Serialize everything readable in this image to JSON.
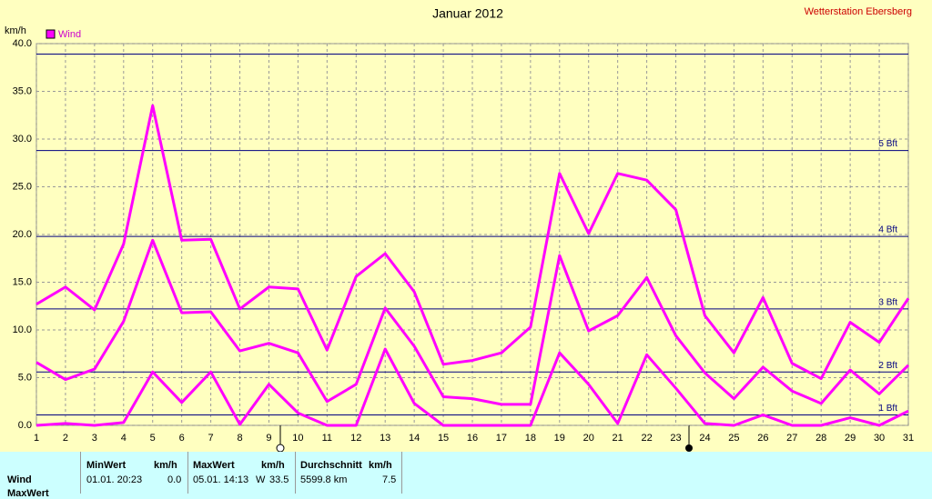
{
  "chart_data": {
    "type": "line",
    "title": "Januar 2012",
    "station": "Wetterstation Ebersberg",
    "y_unit": "km/h",
    "categories": [
      "1",
      "2",
      "3",
      "4",
      "5",
      "6",
      "7",
      "8",
      "9",
      "10",
      "11",
      "12",
      "13",
      "14",
      "15",
      "16",
      "17",
      "18",
      "19",
      "20",
      "21",
      "22",
      "23",
      "24",
      "25",
      "26",
      "27",
      "28",
      "29",
      "30",
      "31"
    ],
    "series": [
      {
        "name": "Wind",
        "color": "#ff00ff",
        "values": [
          12.7,
          14.5,
          12.1,
          19,
          33.5,
          19.4,
          19.5,
          12.2,
          14.5,
          14.3,
          7.9,
          15.6,
          18,
          14,
          6.4,
          6.8,
          7.6,
          10.3,
          26.4,
          20.1,
          26.4,
          25.7,
          22.6,
          11.5,
          7.6,
          13.4,
          6.5,
          4.9,
          10.8,
          8.7,
          13.3
        ]
      },
      {
        "color": "#ff00ff",
        "values": [
          6.6,
          4.8,
          5.9,
          10.9,
          19.4,
          11.8,
          11.9,
          7.8,
          8.6,
          7.6,
          2.5,
          4.3,
          12.3,
          8.3,
          3,
          2.8,
          2.2,
          2.2,
          17.8,
          9.9,
          11.5,
          15.5,
          9.4,
          5.5,
          2.8,
          6.1,
          3.6,
          2.3,
          5.8,
          3.3,
          6.3
        ]
      },
      {
        "color": "#ff00ff",
        "values": [
          0,
          0.2,
          0,
          0.3,
          5.6,
          2.4,
          5.6,
          0.1,
          4.3,
          1.3,
          0,
          0,
          8,
          2.3,
          0,
          0,
          0,
          0,
          7.6,
          4.3,
          0.2,
          7.4,
          3.9,
          0.2,
          0,
          1.1,
          0,
          0,
          0.8,
          0,
          1.5
        ]
      }
    ],
    "ylim": [
      0,
      40
    ],
    "yticks": [
      {
        "value": 0,
        "label": "0.0"
      },
      {
        "value": 5,
        "label": "5.0"
      },
      {
        "value": 10,
        "label": "10.0"
      },
      {
        "value": 15,
        "label": "15.0"
      },
      {
        "value": 20,
        "label": "20.0"
      },
      {
        "value": 25,
        "label": "25.0"
      },
      {
        "value": 30,
        "label": "30.0"
      },
      {
        "value": 35,
        "label": "35.0"
      },
      {
        "value": 40,
        "label": "40.0"
      }
    ],
    "grid": true,
    "bft_lines": [
      1.1,
      5.6,
      12.2,
      19.8,
      28.8,
      38.9
    ],
    "bft_labels": [
      "1 Bft",
      "2 Bft",
      "3 Bft",
      "4 Bft",
      "5 Bft",
      null
    ],
    "bft_color": "#000080"
  },
  "table": {
    "headers": [
      [
        "MinWert",
        "km/h"
      ],
      [
        "MaxWert",
        "km/h"
      ],
      [
        "Durchschnitt",
        "km/h"
      ]
    ],
    "rows": [
      [
        "Wind",
        "01.01.  20:23",
        "0.0",
        "05.01.  14:13",
        "W",
        "33.5",
        "5599.8 km",
        "7.5"
      ],
      [
        "MaxWert"
      ]
    ]
  }
}
